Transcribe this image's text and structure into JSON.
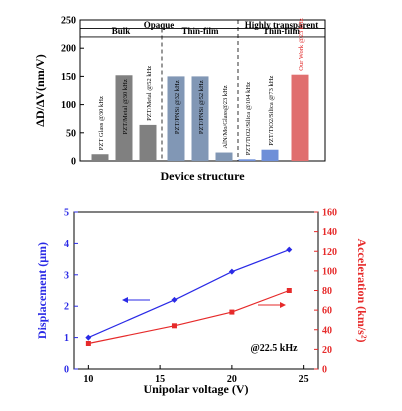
{
  "chart_data": [
    {
      "type": "bar",
      "ylabel": "ΔD/ΔV(nm/V)",
      "xlabel": "Device structure",
      "ylim": [
        0,
        250
      ],
      "yticks": [
        0,
        50,
        100,
        150,
        200,
        250
      ],
      "grid": false,
      "groups": [
        {
          "name": "Opaque",
          "subgroups": [
            {
              "name": "Bulk"
            },
            {
              "name": "Thin-film"
            }
          ]
        },
        {
          "name": "Highly transparent",
          "subgroups": [
            {
              "name": "Thin-film"
            }
          ]
        }
      ],
      "categories": [
        "PZT Glass @30 kHz",
        "PZT/Metal @30 kHz",
        "PZT/Metal @52 kHz",
        "PZT/PNSi @32 kHz",
        "PZT/PNSi @52 kHz",
        "AlN/Mo/Glass@23 kHz",
        "PZT/TiO2/Silica @104 kHz",
        "PZT/TiO2/Silica @73 kHz",
        "Our Work @23 kHz"
      ],
      "values": [
        12,
        152,
        64,
        150,
        150,
        15,
        3,
        20,
        153
      ],
      "colors": [
        "#808080",
        "#808080",
        "#808080",
        "#8197b5",
        "#8197b5",
        "#8197b5",
        "#6f8fd8",
        "#6f8fd8",
        "#e06f6f"
      ]
    },
    {
      "type": "line",
      "xlabel": "Unipolar voltage (V)",
      "ylabel_left": "Displacement (μm)",
      "ylabel_right": "Acceleration (km/s²)",
      "xlim": [
        9,
        26
      ],
      "xticks": [
        10,
        15,
        20,
        25
      ],
      "ylim_left": [
        0,
        5
      ],
      "yticks_left": [
        0,
        1,
        2,
        3,
        4,
        5
      ],
      "ylim_right": [
        0,
        160
      ],
      "yticks_right": [
        0,
        20,
        40,
        60,
        80,
        100,
        120,
        140,
        160
      ],
      "annotation": "@22.5 kHz",
      "series": [
        {
          "axis": "left",
          "color": "#2a2ae6",
          "x": [
            10,
            16,
            20,
            24
          ],
          "values": [
            1.0,
            2.2,
            3.1,
            3.8
          ]
        },
        {
          "axis": "right",
          "color": "#e62a2a",
          "x": [
            10,
            16,
            20,
            24
          ],
          "values": [
            26,
            44,
            58,
            80
          ]
        }
      ]
    }
  ]
}
